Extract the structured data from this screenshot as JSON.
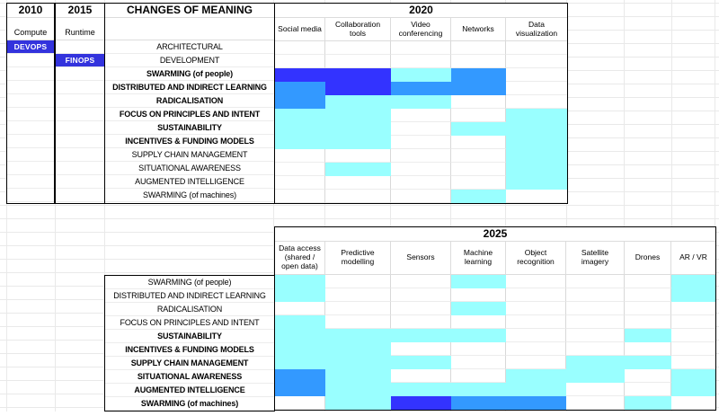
{
  "colors": {
    "white": "#FFFFFF",
    "cyan": "#99FFFF",
    "medium_blue": "#3399FF",
    "dark_blue": "#3333FF",
    "badge_blue": "#3333DD",
    "grid_line": "#D8D8D8"
  },
  "cell_code_map": {
    "W": "white",
    "C": "cyan",
    "B": "medium_blue",
    "D": "dark_blue"
  },
  "left_panel": {
    "col_2010": {
      "title": "2010",
      "subtitle": "Compute",
      "badge": "DEVOPS",
      "badge_row": 0
    },
    "col_2015": {
      "title": "2015",
      "subtitle": "Runtime",
      "badge": "FINOPS",
      "badge_row": 1
    },
    "changes_title": "CHANGES OF MEANING"
  },
  "table_2020": {
    "title": "2020",
    "columns": [
      "Social media",
      "Collaboration tools",
      "Video conferencing",
      "Networks",
      "Data visualization"
    ],
    "row_labels": [
      {
        "text": "ARCHITECTURAL",
        "bold": false
      },
      {
        "text": "DEVELOPMENT",
        "bold": false
      },
      {
        "text": "SWARMING (of people)",
        "bold": true
      },
      {
        "text": "DISTRIBUTED AND INDIRECT LEARNING",
        "bold": true
      },
      {
        "text": "RADICALISATION",
        "bold": true
      },
      {
        "text": "FOCUS ON PRINCIPLES AND INTENT",
        "bold": true
      },
      {
        "text": "SUSTAINABILITY",
        "bold": true
      },
      {
        "text": "INCENTIVES & FUNDING MODELS",
        "bold": true
      },
      {
        "text": "SUPPLY CHAIN MANAGEMENT",
        "bold": false
      },
      {
        "text": "SITUATIONAL AWARENESS",
        "bold": false
      },
      {
        "text": "AUGMENTED INTELLIGENCE",
        "bold": false
      },
      {
        "text": "SWARMING (of machines)",
        "bold": false
      }
    ],
    "cells": [
      [
        "W",
        "W",
        "W",
        "W",
        "W"
      ],
      [
        "W",
        "W",
        "W",
        "W",
        "W"
      ],
      [
        "D",
        "D",
        "C",
        "B",
        "W"
      ],
      [
        "B",
        "D",
        "B",
        "B",
        "W"
      ],
      [
        "B",
        "C",
        "C",
        "W",
        "W"
      ],
      [
        "C",
        "C",
        "W",
        "W",
        "C"
      ],
      [
        "C",
        "C",
        "W",
        "C",
        "C"
      ],
      [
        "C",
        "C",
        "W",
        "W",
        "C"
      ],
      [
        "W",
        "W",
        "W",
        "W",
        "C"
      ],
      [
        "W",
        "C",
        "W",
        "W",
        "C"
      ],
      [
        "W",
        "W",
        "W",
        "W",
        "C"
      ],
      [
        "W",
        "W",
        "W",
        "C",
        "W"
      ]
    ]
  },
  "table_2025": {
    "title": "2025",
    "columns": [
      "Data access (shared / open data)",
      "Predictive modelling",
      "Sensors",
      "Machine learning",
      "Object recognition",
      "Satellite imagery",
      "Drones",
      "AR / VR"
    ],
    "row_labels": [
      {
        "text": "SWARMING (of people)",
        "bold": false
      },
      {
        "text": "DISTRIBUTED AND INDIRECT LEARNING",
        "bold": false
      },
      {
        "text": "RADICALISATION",
        "bold": false
      },
      {
        "text": "FOCUS ON PRINCIPLES AND INTENT",
        "bold": false
      },
      {
        "text": "SUSTAINABILITY",
        "bold": true
      },
      {
        "text": "INCENTIVES & FUNDING MODELS",
        "bold": true
      },
      {
        "text": "SUPPLY CHAIN MANAGEMENT",
        "bold": true
      },
      {
        "text": "SITUATIONAL AWARENESS",
        "bold": true
      },
      {
        "text": "AUGMENTED INTELLIGENCE",
        "bold": true
      },
      {
        "text": "SWARMING (of machines)",
        "bold": true
      }
    ],
    "cells": [
      [
        "C",
        "W",
        "W",
        "C",
        "W",
        "W",
        "W",
        "C"
      ],
      [
        "C",
        "W",
        "W",
        "W",
        "W",
        "W",
        "W",
        "C"
      ],
      [
        "W",
        "W",
        "W",
        "C",
        "W",
        "W",
        "W",
        "W"
      ],
      [
        "C",
        "W",
        "W",
        "W",
        "W",
        "W",
        "W",
        "W"
      ],
      [
        "C",
        "C",
        "C",
        "C",
        "W",
        "W",
        "C",
        "W"
      ],
      [
        "C",
        "C",
        "W",
        "W",
        "W",
        "W",
        "W",
        "W"
      ],
      [
        "C",
        "C",
        "C",
        "W",
        "W",
        "C",
        "C",
        "W"
      ],
      [
        "B",
        "C",
        "W",
        "W",
        "C",
        "C",
        "W",
        "C"
      ],
      [
        "B",
        "C",
        "C",
        "C",
        "C",
        "W",
        "W",
        "C"
      ],
      [
        "W",
        "C",
        "D",
        "B",
        "B",
        "W",
        "C",
        "W"
      ]
    ]
  }
}
